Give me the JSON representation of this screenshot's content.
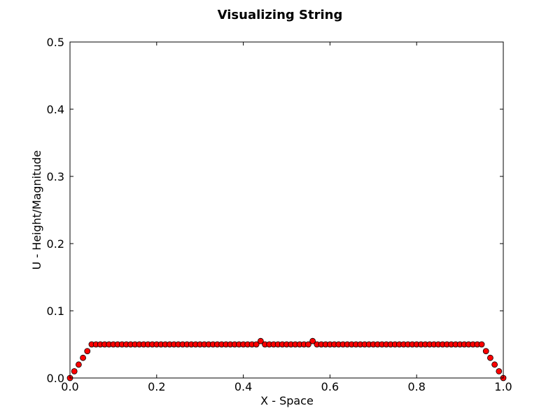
{
  "chart_data": {
    "type": "scatter",
    "title": "Visualizing String",
    "xlabel": "X - Space",
    "ylabel": "U - Height/Magnitude",
    "xlim": [
      0.0,
      1.0
    ],
    "ylim": [
      0.0,
      0.5
    ],
    "x_ticks": [
      "0.0",
      "0.2",
      "0.4",
      "0.6",
      "0.8",
      "1.0"
    ],
    "y_ticks": [
      "0.0",
      "0.1",
      "0.2",
      "0.3",
      "0.4",
      "0.5"
    ],
    "grid": false,
    "marker_color": "#ff0000",
    "marker_edge_color": "#000000",
    "series": [
      {
        "x": [
          0.0,
          0.01,
          0.02,
          0.03,
          0.04,
          0.05,
          0.06,
          0.07,
          0.08,
          0.09,
          0.1,
          0.11,
          0.12,
          0.13,
          0.14,
          0.15,
          0.16,
          0.17,
          0.18,
          0.19,
          0.2,
          0.21,
          0.22,
          0.23,
          0.24,
          0.25,
          0.26,
          0.27,
          0.28,
          0.29,
          0.3,
          0.31,
          0.32,
          0.33,
          0.34,
          0.35,
          0.36,
          0.37,
          0.38,
          0.39,
          0.4,
          0.41,
          0.42,
          0.43,
          0.44,
          0.45,
          0.46,
          0.47,
          0.48,
          0.49,
          0.5,
          0.51,
          0.52,
          0.53,
          0.54,
          0.55,
          0.56,
          0.57,
          0.58,
          0.59,
          0.6,
          0.61,
          0.62,
          0.63,
          0.64,
          0.65,
          0.66,
          0.67,
          0.68,
          0.69,
          0.7,
          0.71,
          0.72,
          0.73,
          0.74,
          0.75,
          0.76,
          0.77,
          0.78,
          0.79,
          0.8,
          0.81,
          0.82,
          0.83,
          0.84,
          0.85,
          0.86,
          0.87,
          0.88,
          0.89,
          0.9,
          0.91,
          0.92,
          0.93,
          0.94,
          0.95,
          0.96,
          0.97,
          0.98,
          0.99,
          1.0
        ],
        "y": [
          0.0,
          0.01,
          0.02,
          0.03,
          0.04,
          0.05,
          0.05,
          0.05,
          0.05,
          0.05,
          0.05,
          0.05,
          0.05,
          0.05,
          0.05,
          0.05,
          0.05,
          0.05,
          0.05,
          0.05,
          0.05,
          0.05,
          0.05,
          0.05,
          0.05,
          0.05,
          0.05,
          0.05,
          0.05,
          0.05,
          0.05,
          0.05,
          0.05,
          0.05,
          0.05,
          0.05,
          0.05,
          0.05,
          0.05,
          0.05,
          0.05,
          0.05,
          0.05,
          0.05,
          0.055,
          0.05,
          0.05,
          0.05,
          0.05,
          0.05,
          0.05,
          0.05,
          0.05,
          0.05,
          0.05,
          0.05,
          0.055,
          0.05,
          0.05,
          0.05,
          0.05,
          0.05,
          0.05,
          0.05,
          0.05,
          0.05,
          0.05,
          0.05,
          0.05,
          0.05,
          0.05,
          0.05,
          0.05,
          0.05,
          0.05,
          0.05,
          0.05,
          0.05,
          0.05,
          0.05,
          0.05,
          0.05,
          0.05,
          0.05,
          0.05,
          0.05,
          0.05,
          0.05,
          0.05,
          0.05,
          0.05,
          0.05,
          0.05,
          0.05,
          0.05,
          0.05,
          0.04,
          0.03,
          0.02,
          0.01,
          0.0
        ]
      }
    ]
  }
}
